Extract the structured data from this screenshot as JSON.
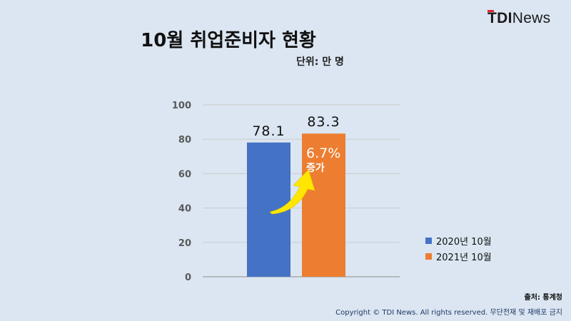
{
  "logo": {
    "brand_bold": "TDI",
    "brand_light": "News"
  },
  "title": "10월 취업준비자 현황",
  "unit_label": "단위: 만 명",
  "chart_data": {
    "type": "bar",
    "categories": [
      "2020년 10월",
      "2021년 10월"
    ],
    "values": [
      78.1,
      83.3
    ],
    "value_labels": [
      "78.1",
      "83.3"
    ],
    "colors": [
      "#4472c4",
      "#ed7d31"
    ],
    "ylim": [
      0,
      100
    ],
    "yticks": [
      0,
      20,
      40,
      60,
      80,
      100
    ],
    "grid": true,
    "legend_position": "right",
    "annotation": {
      "value": "6.7%",
      "text": "증가",
      "arrow_color": "#ffe600"
    }
  },
  "footer": {
    "source": "출처: 통계청",
    "copyright": "Copyright © TDI News. All rights reserved. 무단전재 및 재배포 금지"
  }
}
